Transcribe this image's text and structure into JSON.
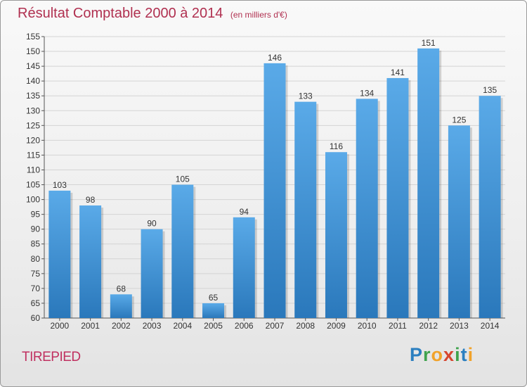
{
  "header": {
    "title": "Résultat Comptable 2000 à 2014",
    "subtitle": "(en milliers d'€)"
  },
  "footer": {
    "town": "TIREPIED",
    "logo_letters": [
      "P",
      "r",
      "o",
      "x",
      "i",
      "t",
      "i"
    ]
  },
  "colors": {
    "bar_top": "#5aaae8",
    "bar_bottom": "#2a78bb",
    "title": "#b03050"
  },
  "chart_data": {
    "type": "bar",
    "title": "Résultat Comptable 2000 à 2014",
    "subtitle": "(en milliers d'€)",
    "xlabel": "",
    "ylabel": "",
    "categories": [
      "2000",
      "2001",
      "2002",
      "2003",
      "2004",
      "2005",
      "2006",
      "2007",
      "2008",
      "2009",
      "2010",
      "2011",
      "2012",
      "2013",
      "2014"
    ],
    "values": [
      103,
      98,
      68,
      90,
      105,
      65,
      94,
      146,
      133,
      116,
      134,
      141,
      151,
      125,
      135
    ],
    "ylim": [
      60,
      155
    ],
    "ytick_step": 5,
    "grid": true
  }
}
